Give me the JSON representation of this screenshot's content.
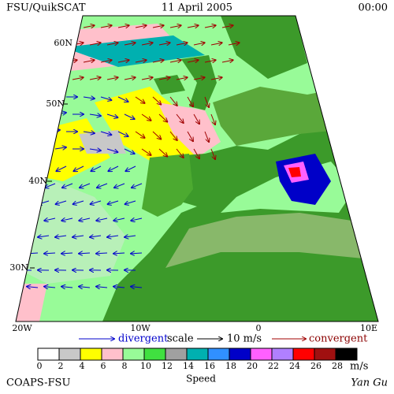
{
  "header": {
    "left": "FSU/QuikSCAT",
    "center": "11 April 2005",
    "right": "00:00"
  },
  "map": {
    "lat_labels": [
      "60N",
      "50N",
      "40N",
      "30N"
    ],
    "lon_labels": [
      "20W",
      "10W",
      "0",
      "10E"
    ]
  },
  "legend": {
    "divergent": "divergent",
    "scale": "scale",
    "scale_value": "10 m/s",
    "convergent": "convergent",
    "colorbar": {
      "ticks": [
        "0",
        "2",
        "4",
        "6",
        "8",
        "10",
        "12",
        "14",
        "16",
        "18",
        "20",
        "22",
        "24",
        "26",
        "28"
      ],
      "unit": "m/s",
      "title": "Speed",
      "colors": [
        "#ffffff",
        "#c8c8c8",
        "#ffff00",
        "#ffc0cb",
        "#98fb98",
        "#40e040",
        "#a0a0a0",
        "#00b0b0",
        "#3090ff",
        "#0000c8",
        "#ff60ff",
        "#b080ff",
        "#ff0000",
        "#a01010",
        "#000000"
      ]
    }
  },
  "footer": {
    "left": "COAPS-FSU",
    "right": "Yan Gu"
  }
}
